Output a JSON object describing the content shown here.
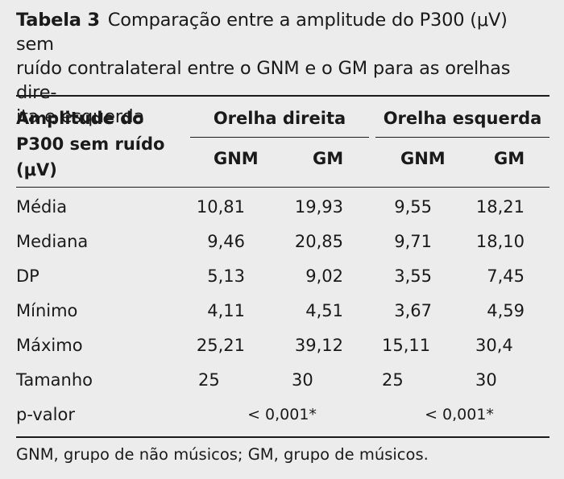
{
  "caption": {
    "label": "Tabela 3",
    "text": "Comparação entre a amplitude do P300 (μV) sem ruído contralateral entre o GNM e o GM para as orelhas dire-ita e esquerda",
    "line1": "Comparação entre a amplitude do P300 (μV) sem",
    "line2": "ruído contralateral entre o GNM e o GM para as orelhas dire-",
    "line3": "ita e esquerda"
  },
  "table": {
    "row_header_title": {
      "line1": "Amplitude do",
      "line2": "P300 sem ruído",
      "line3": "(μV)"
    },
    "groups": [
      "Orelha direita",
      "Orelha esquerda"
    ],
    "subheaders": [
      "GNM",
      "GM",
      "GNM",
      "GM"
    ],
    "rows": [
      {
        "label": "Média",
        "values": [
          "10,81",
          "19,93",
          "9,55",
          "18,21"
        ]
      },
      {
        "label": "Mediana",
        "values": [
          "9,46",
          "20,85",
          "9,71",
          "18,10"
        ]
      },
      {
        "label": "DP",
        "values": [
          "5,13",
          "9,02",
          "3,55",
          "7,45"
        ]
      },
      {
        "label": "Mínimo",
        "values": [
          "4,11",
          "4,51",
          "3,67",
          "4,59"
        ]
      },
      {
        "label": "Máximo",
        "values": [
          "25,21",
          "39,12",
          "15,11",
          "30,4"
        ]
      },
      {
        "label": "Tamanho",
        "values": [
          "25",
          "30",
          "25",
          "30"
        ]
      }
    ],
    "pvalue": {
      "label": "p-valor",
      "right": "< 0,001*",
      "left": "< 0,001*"
    }
  },
  "footnote": "GNM, grupo de não músicos; GM, grupo de músicos."
}
